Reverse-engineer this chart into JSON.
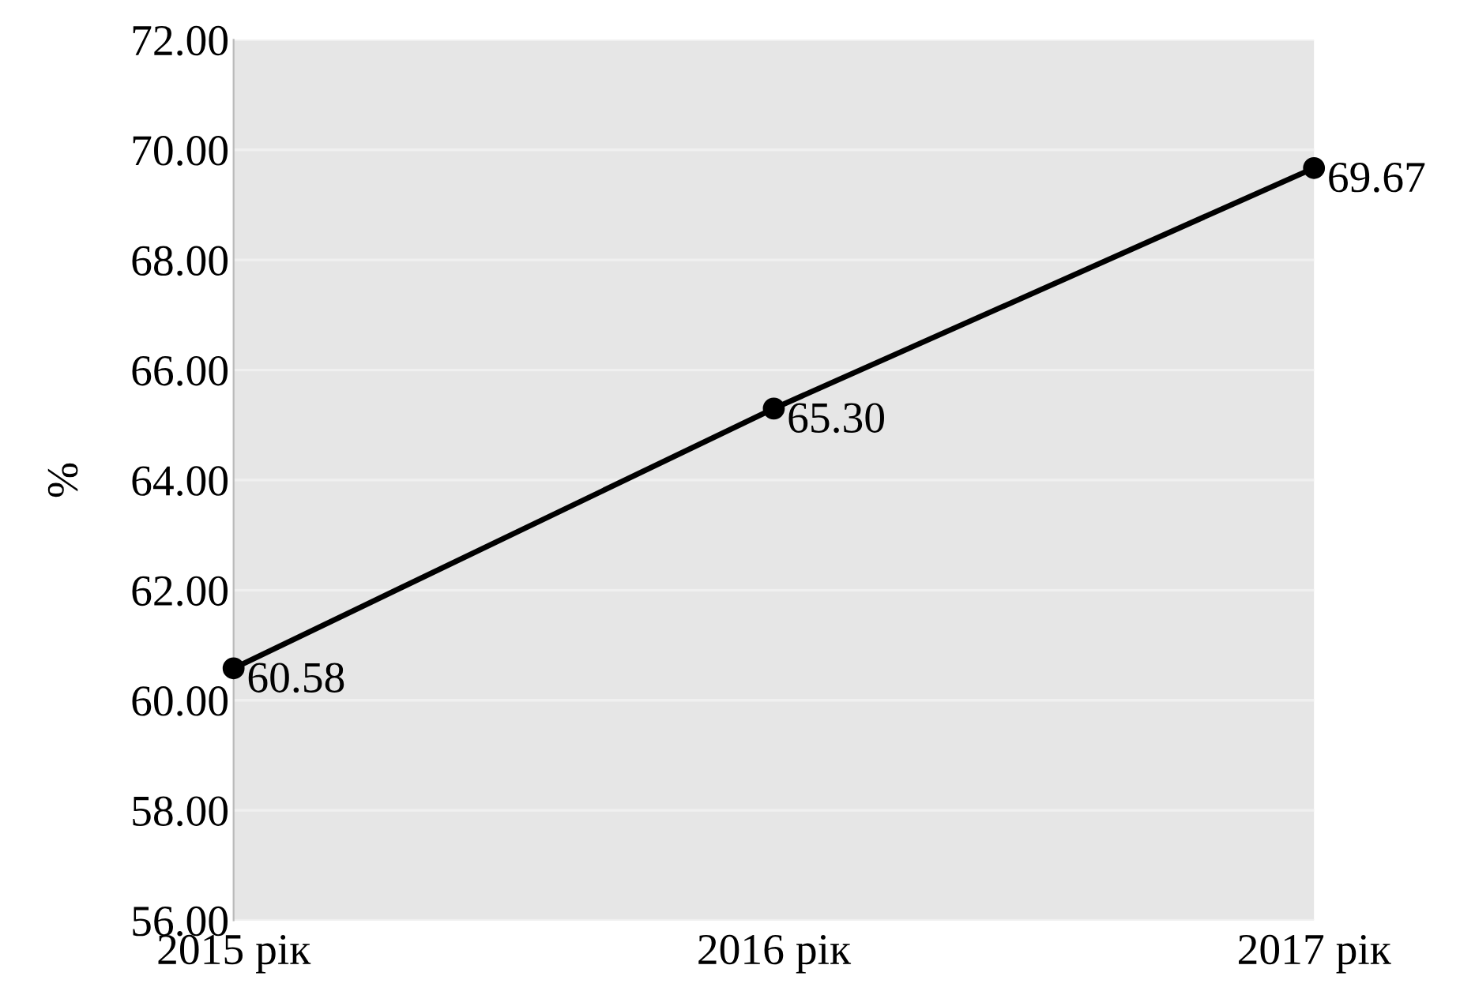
{
  "chart_data": {
    "type": "line",
    "ylabel": "%",
    "categories": [
      "2015 рік",
      "2016 рік",
      "2017 рік"
    ],
    "series": [
      {
        "color": "#000000",
        "values": [
          60.58,
          65.3,
          69.67
        ],
        "value_labels": [
          "60.58",
          "65.30",
          "69.67"
        ]
      }
    ],
    "ylim": [
      56,
      72
    ],
    "yticks": [
      {
        "value": 56,
        "label": "56.00"
      },
      {
        "value": 58,
        "label": "58.00"
      },
      {
        "value": 60,
        "label": "60.00"
      },
      {
        "value": 62,
        "label": "62.00"
      },
      {
        "value": 64,
        "label": "64.00"
      },
      {
        "value": 66,
        "label": "66.00"
      },
      {
        "value": 68,
        "label": "68.00"
      },
      {
        "value": 70,
        "label": "70.00"
      },
      {
        "value": 72,
        "label": "72.00"
      }
    ],
    "grid": "y",
    "marker": "circle",
    "line_style": "solid"
  }
}
